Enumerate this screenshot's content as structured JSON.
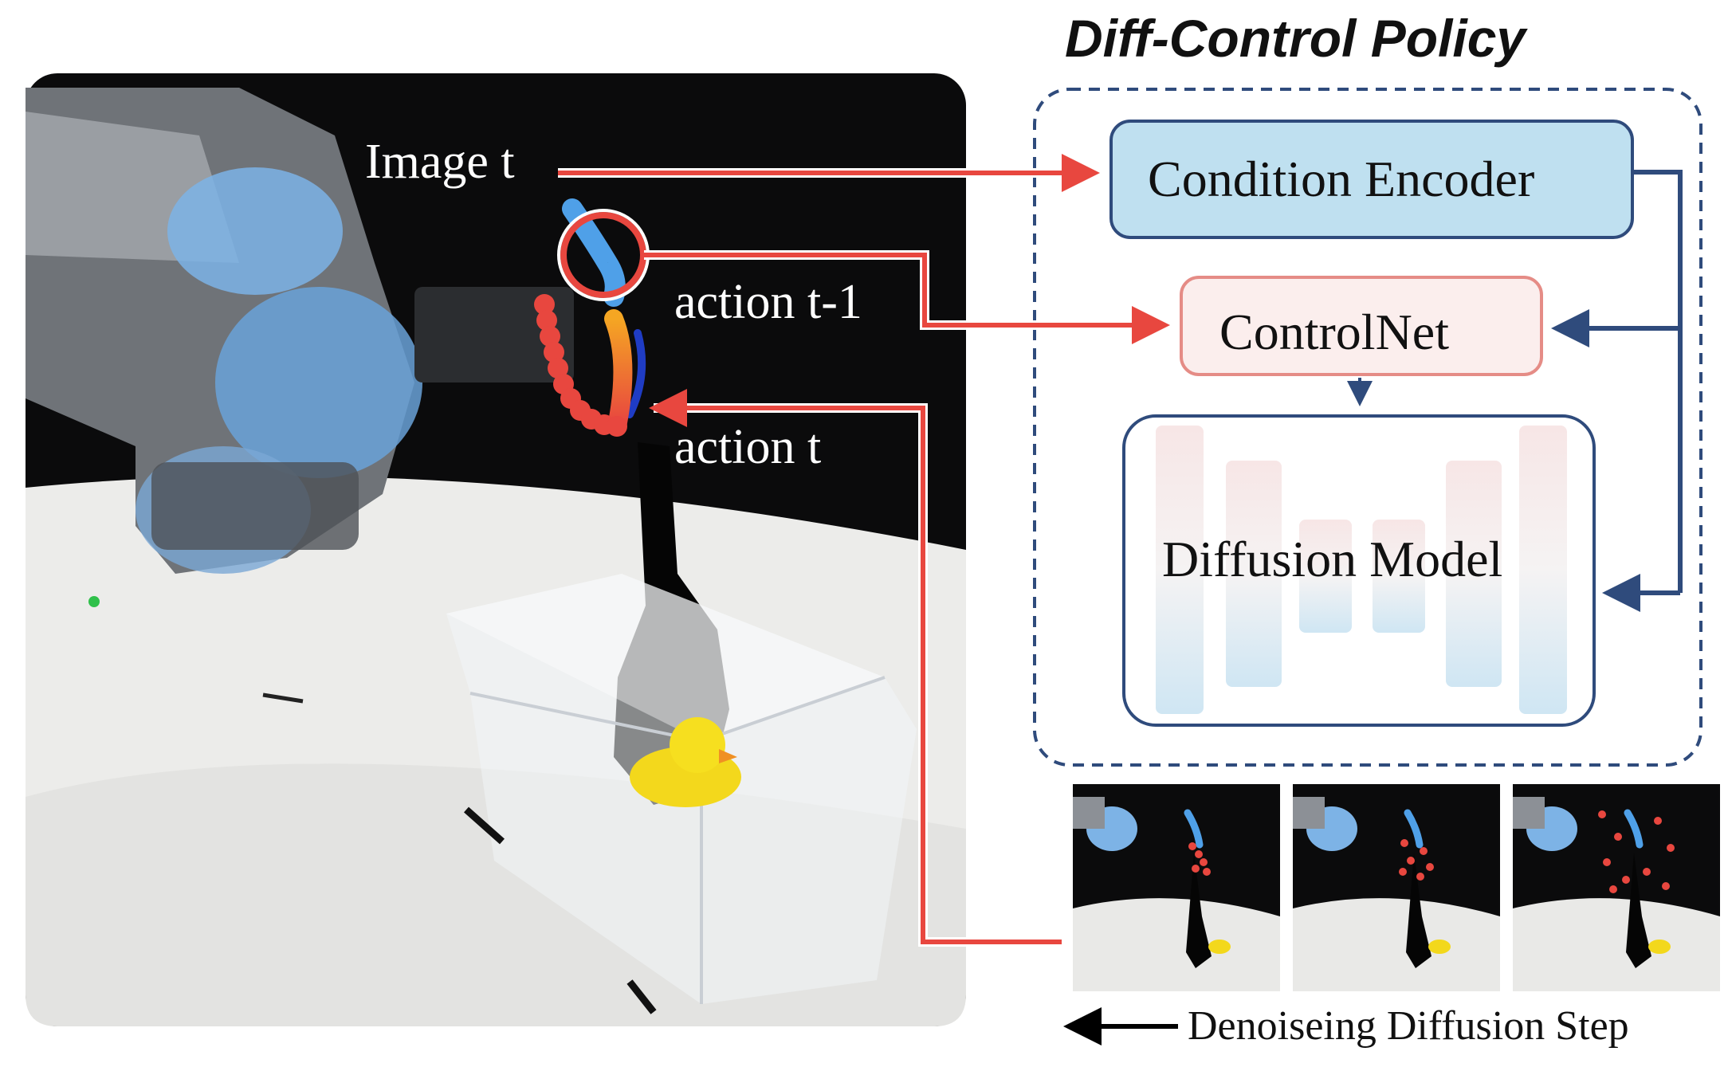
{
  "title": "Diff-Control Policy",
  "labels": {
    "image_t": "Image t",
    "action_prev": "action t-1",
    "action_t": "action t",
    "denoise_step": "Denoiseing Diffusion Step"
  },
  "blocks": {
    "condition_encoder": "Condition Encoder",
    "controlnet": "ControlNet",
    "diffusion_model": "Diffusion Model"
  },
  "colors": {
    "arrow_red": "#e8473f",
    "arrow_blue": "#2f4b7c",
    "encoder_fill": "#bfe0f0",
    "controlnet_fill": "#fbeeed",
    "controlnet_stroke": "#e58c86"
  }
}
